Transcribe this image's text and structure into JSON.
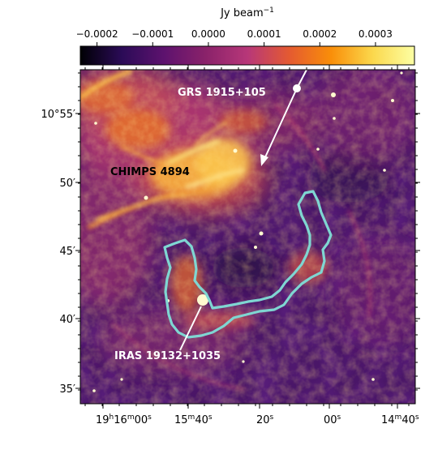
{
  "colorbar": {
    "unit_label": "Jy beam",
    "unit_exponent": "−1",
    "ticks": [
      "−0.0002",
      "−0.0001",
      "0.0000",
      "0.0001",
      "0.0002",
      "0.0003"
    ],
    "tick_values": [
      -0.0002,
      -0.0001,
      0.0,
      0.0001,
      0.0002,
      0.0003
    ],
    "range": [
      -0.00023,
      0.00037
    ],
    "colormap_stops": [
      "#000004",
      "#2b0b57",
      "#5d126e",
      "#8a226a",
      "#b73779",
      "#e45a31",
      "#f98e09",
      "#fbd84c",
      "#fcffa4"
    ]
  },
  "annotations": {
    "grs_label": "GRS 1915+105",
    "chimps_label": "CHIMPS 4894",
    "iras_label": "IRAS 19132+1035"
  },
  "axes": {
    "dec_ticks": [
      "10°55′",
      "50′",
      "45′",
      "40′",
      "35′"
    ],
    "ra_ticks": [
      {
        "main": "19",
        "sup1": "h",
        "mid": "16",
        "sup2": "m",
        "end": "00",
        "sup3": "s"
      },
      {
        "main": "15",
        "sup1": "m",
        "end": "40",
        "sup3": "s"
      },
      {
        "main": "20",
        "sup3": "s"
      },
      {
        "main": "00",
        "sup3": "s"
      },
      {
        "main": "14",
        "sup1": "m",
        "end": "40",
        "sup3": "s"
      }
    ]
  },
  "colors": {
    "contour": "#7fd6d2",
    "arrow": "#ffffff",
    "background_low": "#3a0f63",
    "emission_high": "#fcffa4"
  }
}
